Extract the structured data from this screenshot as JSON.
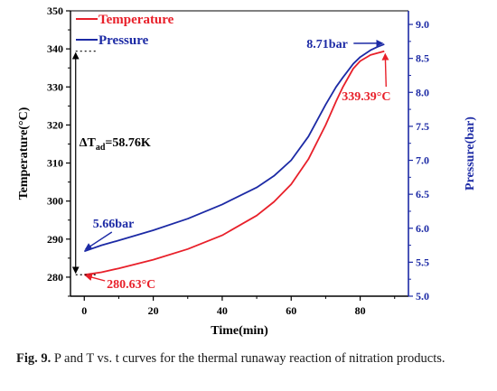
{
  "chart_data": {
    "type": "line",
    "title": "",
    "xlabel": "Time(min)",
    "ylabel_left": "Temperature(°C)",
    "ylabel_right": "Pressure(bar)",
    "xlim": [
      -4,
      94
    ],
    "ylim_left": [
      275,
      350
    ],
    "ylim_right": [
      5.0,
      9.2
    ],
    "x_ticks": [
      0,
      20,
      40,
      60,
      80
    ],
    "y_left_ticks": [
      280,
      290,
      300,
      310,
      320,
      330,
      340,
      350
    ],
    "y_right_ticks": [
      5.0,
      5.5,
      6.0,
      6.5,
      7.0,
      7.5,
      8.0,
      8.5,
      9.0
    ],
    "x_tick_labels": [
      "0",
      "20",
      "40",
      "60",
      "80"
    ],
    "y_left_tick_labels": [
      "280",
      "290",
      "300",
      "310",
      "320",
      "330",
      "340",
      "350"
    ],
    "y_right_tick_labels": [
      "5.0",
      "5.5",
      "6.0",
      "6.5",
      "7.0",
      "7.5",
      "8.0",
      "8.5",
      "9.0"
    ],
    "legend_position": "top-left",
    "grid": false,
    "series": [
      {
        "name": "Temperature",
        "axis": "left",
        "color": "#e8202a",
        "x": [
          0,
          5,
          10,
          20,
          30,
          40,
          50,
          55,
          60,
          65,
          70,
          73,
          75,
          78,
          80,
          83,
          85,
          87
        ],
        "y": [
          280.63,
          281.3,
          282.3,
          284.6,
          287.4,
          291.0,
          296.2,
          299.8,
          304.4,
          311.0,
          320.0,
          326.2,
          330.0,
          334.8,
          336.8,
          338.4,
          338.9,
          339.39
        ]
      },
      {
        "name": "Pressure",
        "axis": "right",
        "color": "#1c2aa5",
        "x": [
          0,
          5,
          10,
          20,
          30,
          40,
          50,
          55,
          60,
          65,
          70,
          73,
          75,
          78,
          80,
          83,
          85,
          87
        ],
        "y": [
          5.66,
          5.75,
          5.82,
          5.97,
          6.14,
          6.35,
          6.6,
          6.77,
          7.0,
          7.35,
          7.82,
          8.08,
          8.22,
          8.42,
          8.52,
          8.62,
          8.67,
          8.71
        ]
      }
    ],
    "annotations": {
      "delta_symbol": "ΔT",
      "delta_subscript": "ad",
      "delta_value": "=58.76K",
      "p_end": "8.71bar",
      "t_end": "339.39°C",
      "p_start": "5.66bar",
      "t_start": "280.63°C"
    }
  },
  "caption": {
    "fig_label": "Fig. 9.",
    "text": " P and T vs. t curves for the thermal runaway reaction of nitration products."
  }
}
